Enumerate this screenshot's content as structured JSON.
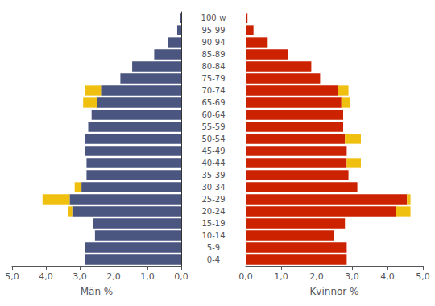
{
  "chart_data": [
    {
      "type": "bar",
      "orientation": "horizontal",
      "stacked": true,
      "grid": false,
      "xlabel": "Män %",
      "categories": [
        "0-4",
        "5-9",
        "10-14",
        "15-19",
        "20-24",
        "25-29",
        "30-34",
        "35-39",
        "40-44",
        "45-49",
        "50-54",
        "55-59",
        "60-64",
        "65-69",
        "70-74",
        "75-79",
        "80-84",
        "85-89",
        "90-94",
        "95-99",
        "100-w"
      ],
      "xlim": [
        5.0,
        0.0
      ],
      "xticks": [
        {
          "value": 0.0,
          "label": "0,0"
        },
        {
          "value": 1.0,
          "label": "1,0"
        },
        {
          "value": 2.0,
          "label": "2,0"
        },
        {
          "value": 3.0,
          "label": "3,0"
        },
        {
          "value": 4.0,
          "label": "4,0"
        },
        {
          "value": 5.0,
          "label": "5,0"
        }
      ],
      "series": [
        {
          "color": "#4a5580",
          "values": [
            2.85,
            2.85,
            2.55,
            2.6,
            3.2,
            3.3,
            2.95,
            2.8,
            2.8,
            2.85,
            2.85,
            2.75,
            2.65,
            2.5,
            2.35,
            1.8,
            1.45,
            0.8,
            0.4,
            0.12,
            0.04
          ]
        },
        {
          "color": "#f0c010",
          "values": [
            null,
            null,
            null,
            null,
            0.15,
            0.8,
            0.2,
            null,
            null,
            null,
            null,
            null,
            null,
            0.4,
            0.5,
            null,
            null,
            null,
            null,
            null,
            null
          ]
        }
      ]
    },
    {
      "type": "bar",
      "orientation": "horizontal",
      "stacked": true,
      "grid": false,
      "tick_labels": "x",
      "xlabel": "Kvinnor %",
      "categories": [
        "0-4",
        "5-9",
        "10-14",
        "15-19",
        "20-24",
        "25-29",
        "30-34",
        "35-39",
        "40-44",
        "45-49",
        "50-54",
        "55-59",
        "60-64",
        "65-69",
        "70-74",
        "75-79",
        "80-84",
        "85-89",
        "90-94",
        "95-99",
        "100-w"
      ],
      "xlim": [
        0.0,
        5.0
      ],
      "xticks": [
        {
          "value": 0.0,
          "label": "0,0"
        },
        {
          "value": 1.0,
          "label": "1,0"
        },
        {
          "value": 2.0,
          "label": "2,0"
        },
        {
          "value": 3.0,
          "label": "3,0"
        },
        {
          "value": 4.0,
          "label": "4,0"
        },
        {
          "value": 5.0,
          "label": "5,0"
        }
      ],
      "series": [
        {
          "color": "#cc2200",
          "values": [
            2.85,
            2.85,
            2.5,
            2.8,
            4.25,
            4.55,
            3.15,
            2.9,
            2.85,
            2.85,
            2.8,
            2.75,
            2.75,
            2.7,
            2.6,
            2.1,
            1.85,
            1.2,
            0.62,
            0.22,
            0.05
          ]
        },
        {
          "color": "#f0c010",
          "values": [
            null,
            null,
            null,
            null,
            0.4,
            0.1,
            null,
            null,
            0.4,
            null,
            0.45,
            null,
            null,
            0.25,
            0.3,
            null,
            null,
            null,
            null,
            null,
            null
          ]
        }
      ]
    }
  ]
}
